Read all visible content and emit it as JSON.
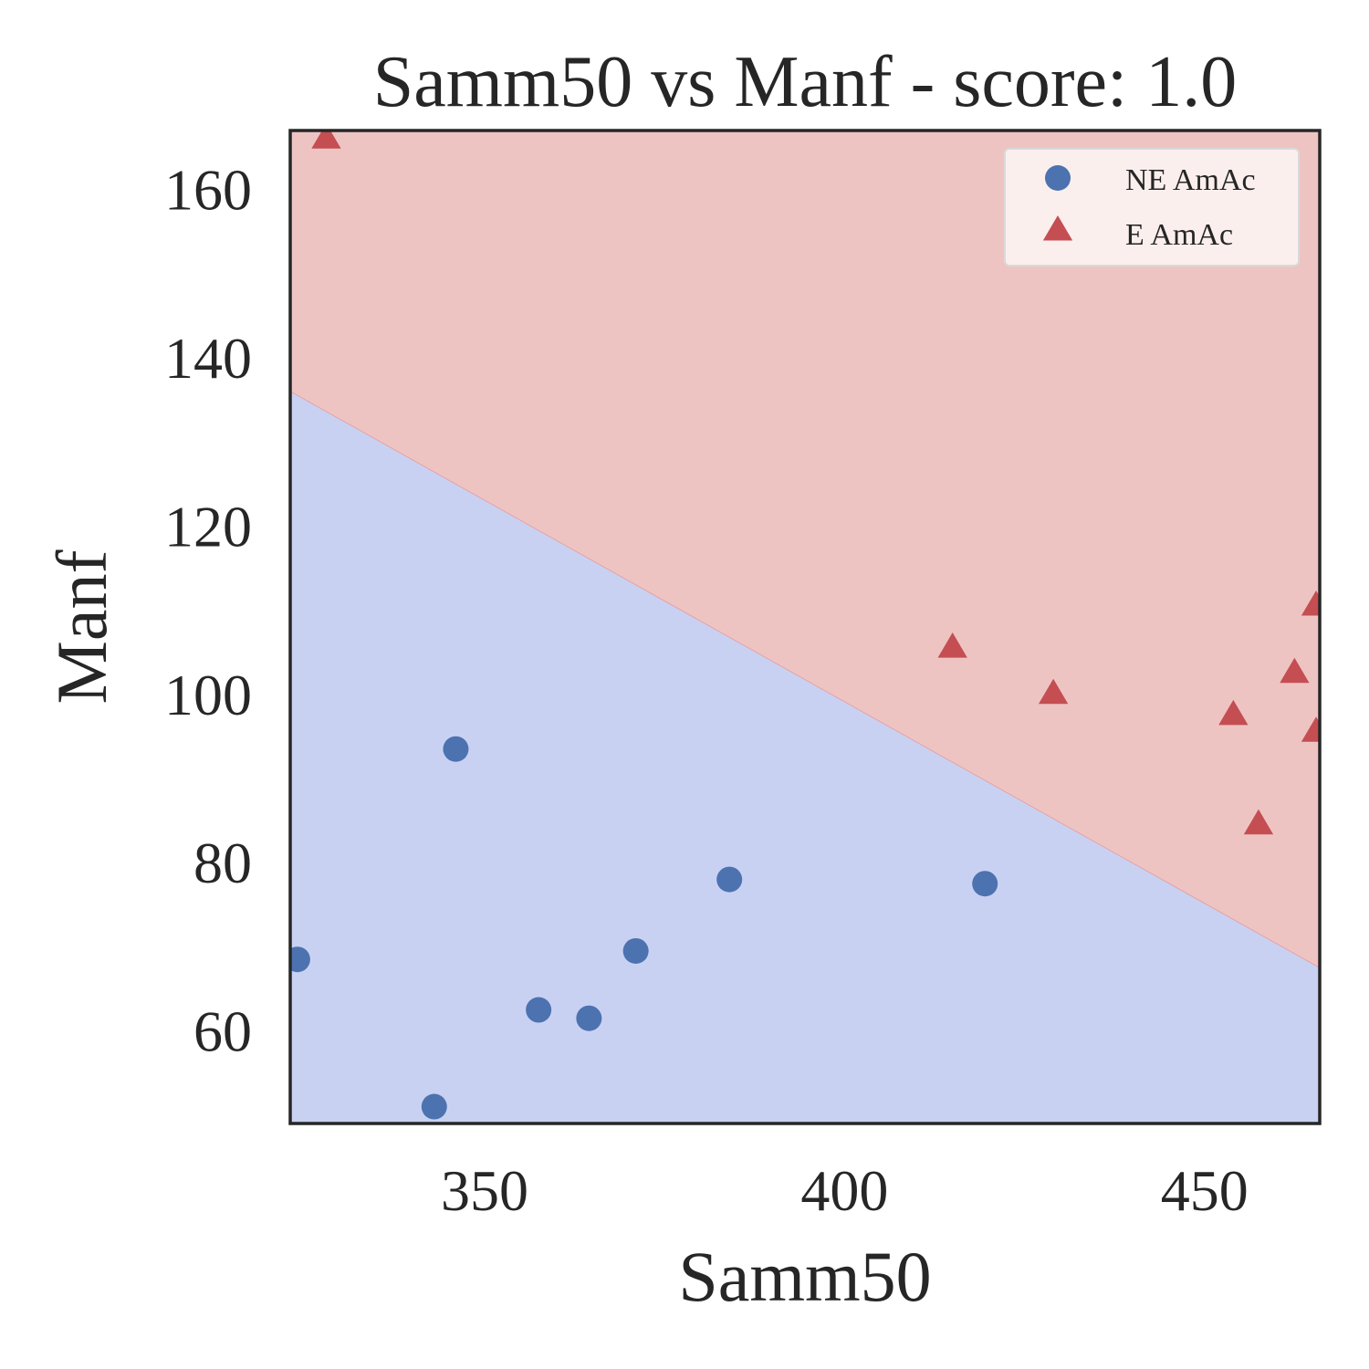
{
  "chart_data": {
    "type": "scatter",
    "title": "Samm50 vs Manf - score: 1.0",
    "xlabel": "Samm50",
    "ylabel": "Manf",
    "xlim": [
      323,
      466
    ],
    "ylim": [
      49,
      167
    ],
    "xticks": [
      350,
      400,
      450
    ],
    "yticks": [
      60,
      80,
      100,
      120,
      140,
      160
    ],
    "grid": false,
    "legend_position": "top-right",
    "decision_boundary": {
      "points": [
        [
          323,
          136
        ],
        [
          466,
          67.5
        ]
      ],
      "below_region_color": "#c9d1f2",
      "above_region_color": "#eec4c3"
    },
    "series": [
      {
        "name": "NE AmAc",
        "marker": "circle",
        "color": "#4c72b0",
        "points": [
          [
            324,
            68.5
          ],
          [
            343,
            51
          ],
          [
            346,
            93.5
          ],
          [
            357.5,
            62.5
          ],
          [
            364.5,
            61.5
          ],
          [
            371,
            69.5
          ],
          [
            384,
            78
          ],
          [
            419.5,
            77.5
          ]
        ]
      },
      {
        "name": "E AmAc",
        "marker": "triangle",
        "color": "#c44e52",
        "points": [
          [
            328,
            166
          ],
          [
            415,
            105.5
          ],
          [
            429,
            100
          ],
          [
            454,
            97.5
          ],
          [
            457.5,
            84.5
          ],
          [
            462.5,
            102.5
          ],
          [
            465.5,
            95.5
          ],
          [
            465.5,
            110.5
          ]
        ]
      }
    ]
  }
}
